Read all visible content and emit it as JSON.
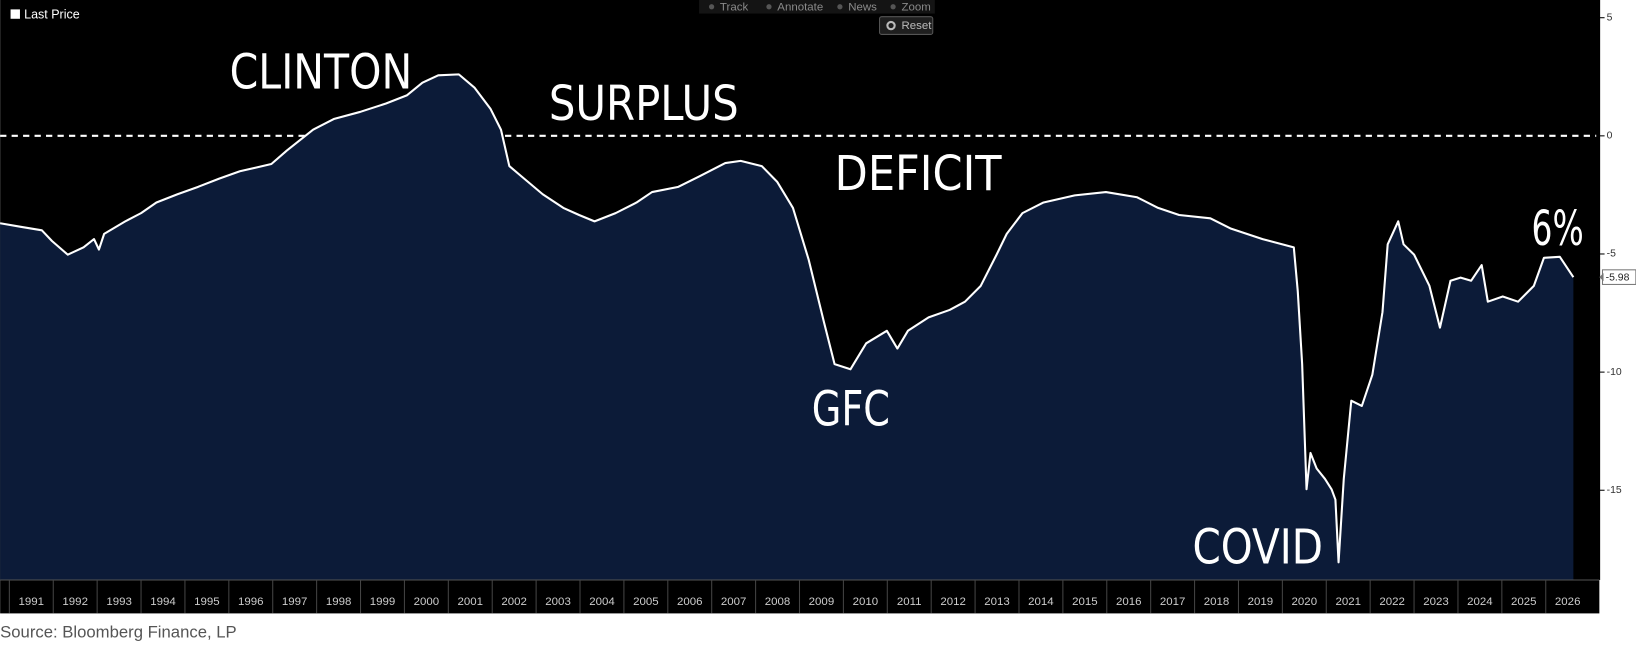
{
  "chart_data": {
    "type": "area",
    "x": [
      1990.79,
      1991.26,
      1991.74,
      1991.97,
      1992.33,
      1992.69,
      1992.93,
      1993.04,
      1993.16,
      1993.64,
      1994.0,
      1994.35,
      1994.83,
      1995.3,
      1995.78,
      1996.25,
      1996.97,
      1997.32,
      1997.92,
      1998.39,
      1998.99,
      1999.58,
      2000.06,
      2000.41,
      2000.77,
      2001.24,
      2001.6,
      2001.96,
      2002.2,
      2002.39,
      2002.67,
      2003.15,
      2003.62,
      2003.98,
      2004.33,
      2004.81,
      2005.29,
      2005.64,
      2006.24,
      2006.71,
      2007.31,
      2007.66,
      2008.14,
      2008.49,
      2008.85,
      2009.21,
      2009.56,
      2009.8,
      2010.16,
      2010.52,
      2010.99,
      2011.23,
      2011.47,
      2011.94,
      2012.42,
      2012.77,
      2013.13,
      2013.49,
      2013.72,
      2014.08,
      2014.56,
      2015.27,
      2015.98,
      2016.69,
      2017.17,
      2017.65,
      2018.36,
      2018.83,
      2019.55,
      2020.26,
      2020.35,
      2020.45,
      2020.55,
      2020.64,
      2020.78,
      2020.97,
      2021.12,
      2021.21,
      2021.28,
      2021.4,
      2021.57,
      2021.81,
      2022.05,
      2022.28,
      2022.4,
      2022.64,
      2022.76,
      2023.0,
      2023.35,
      2023.59,
      2023.83,
      2024.06,
      2024.3,
      2024.54,
      2024.68,
      2025.02,
      2025.37,
      2025.73,
      2025.96,
      2026.32,
      2026.63
    ],
    "series": [
      {
        "name": "Last Price",
        "color": "#ffffff",
        "fill": "#0c1b38",
        "values": [
          -3.7,
          -3.85,
          -4.0,
          -4.45,
          -5.03,
          -4.72,
          -4.37,
          -4.81,
          -4.15,
          -3.62,
          -3.27,
          -2.82,
          -2.47,
          -2.16,
          -1.81,
          -1.5,
          -1.19,
          -0.62,
          0.26,
          0.71,
          1.01,
          1.37,
          1.72,
          2.25,
          2.56,
          2.6,
          2.03,
          1.15,
          0.26,
          -1.28,
          -1.72,
          -2.47,
          -3.05,
          -3.35,
          -3.62,
          -3.27,
          -2.82,
          -2.38,
          -2.16,
          -1.72,
          -1.15,
          -1.06,
          -1.28,
          -1.94,
          -3.05,
          -5.25,
          -7.9,
          -9.66,
          -9.88,
          -8.78,
          -8.25,
          -9.0,
          -8.25,
          -7.68,
          -7.37,
          -7.02,
          -6.35,
          -5.03,
          -4.15,
          -3.27,
          -2.82,
          -2.52,
          -2.38,
          -2.6,
          -3.05,
          -3.35,
          -3.49,
          -3.93,
          -4.37,
          -4.72,
          -6.58,
          -9.66,
          -14.96,
          -13.42,
          -14.08,
          -14.52,
          -14.96,
          -15.4,
          -18.05,
          -14.52,
          -11.21,
          -11.43,
          -10.11,
          -7.46,
          -4.59,
          -3.62,
          -4.59,
          -5.03,
          -6.35,
          -8.12,
          -6.13,
          -6.0,
          -6.13,
          -5.47,
          -7.02,
          -6.8,
          -7.02,
          -6.35,
          -5.16,
          -5.12,
          -5.98
        ]
      }
    ],
    "xlim": [
      1990.79,
      2027.15
    ],
    "ylim": [
      -18.8,
      5.75
    ],
    "xticks": [
      1991,
      1992,
      1993,
      1994,
      1995,
      1996,
      1997,
      1998,
      1999,
      2000,
      2001,
      2002,
      2003,
      2004,
      2005,
      2006,
      2007,
      2008,
      2009,
      2010,
      2011,
      2012,
      2013,
      2014,
      2015,
      2016,
      2017,
      2018,
      2019,
      2020,
      2021,
      2022,
      2023,
      2024,
      2025,
      2026
    ],
    "yticks": [
      5,
      0,
      -5,
      -10,
      -15
    ],
    "reference_line": 0,
    "last_price": -5.98,
    "legend": "top-left",
    "annotations": [
      "CLINTON",
      "SURPLUS",
      "DEFICIT",
      "GFC",
      "COVID",
      "6%"
    ]
  },
  "toolbar": {
    "buttons": [
      "Track",
      "Annotate",
      "News",
      "Zoom"
    ],
    "reset": "Reset"
  },
  "source": "Source: Bloomberg Finance, LP"
}
